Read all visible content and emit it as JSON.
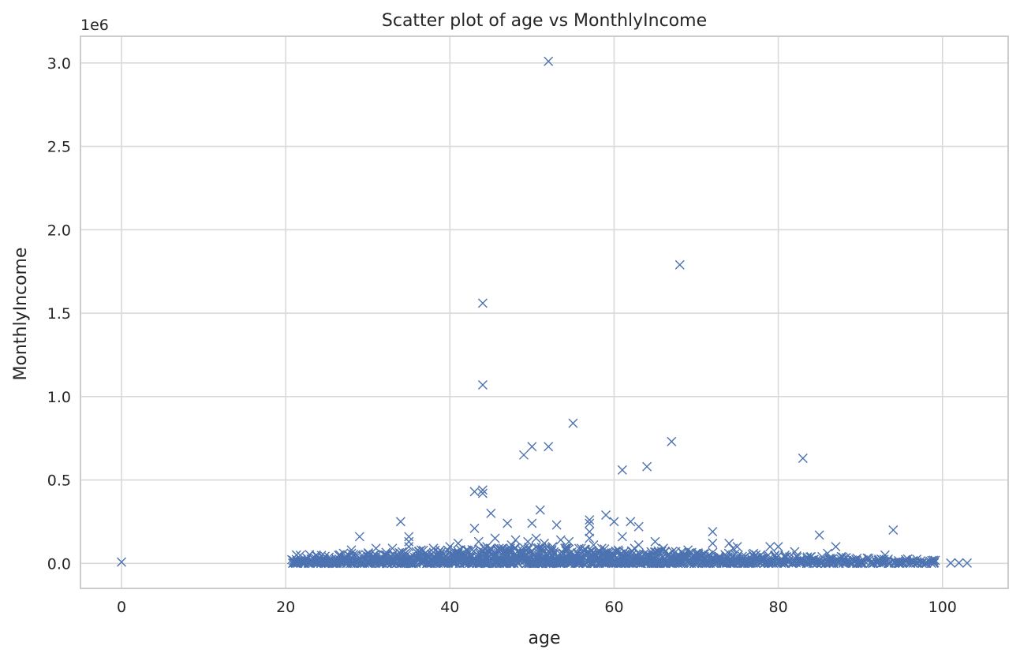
{
  "chart_data": {
    "type": "scatter",
    "title": "Scatter plot of age vs MonthlyIncome",
    "xlabel": "age",
    "ylabel": "MonthlyIncome",
    "y_offset_label": "1e6",
    "xlim": [
      -5,
      108
    ],
    "ylim": [
      -150000,
      3160000
    ],
    "x_ticks": [
      0,
      20,
      40,
      60,
      80,
      100
    ],
    "x_tick_labels": [
      "0",
      "20",
      "40",
      "60",
      "80",
      "100"
    ],
    "y_ticks": [
      0,
      500000,
      1000000,
      1500000,
      2000000,
      2500000,
      3000000
    ],
    "y_tick_labels": [
      "0.0",
      "0.5",
      "1.0",
      "1.5",
      "2.0",
      "2.5",
      "3.0"
    ],
    "grid": true,
    "marker": "x",
    "color": "#4c72b0",
    "points": [
      [
        0,
        8000
      ],
      [
        21,
        3000
      ],
      [
        21.5,
        5000
      ],
      [
        22,
        4000
      ],
      [
        23,
        6000
      ],
      [
        24,
        5000
      ],
      [
        25,
        8000
      ],
      [
        25.5,
        20000
      ],
      [
        26,
        10000
      ],
      [
        27,
        15000
      ],
      [
        28,
        30000
      ],
      [
        28,
        80000
      ],
      [
        29,
        160000
      ],
      [
        29.5,
        25000
      ],
      [
        30,
        40000
      ],
      [
        31,
        30000
      ],
      [
        31,
        90000
      ],
      [
        32,
        50000
      ],
      [
        33,
        90000
      ],
      [
        33,
        20000
      ],
      [
        34,
        250000
      ],
      [
        34,
        60000
      ],
      [
        35,
        160000
      ],
      [
        35,
        130000
      ],
      [
        35,
        100000
      ],
      [
        36,
        40000
      ],
      [
        36.5,
        80000
      ],
      [
        37,
        60000
      ],
      [
        38,
        90000
      ],
      [
        38,
        30000
      ],
      [
        39,
        70000
      ],
      [
        39.5,
        20000
      ],
      [
        40,
        100000
      ],
      [
        40.5,
        50000
      ],
      [
        41,
        120000
      ],
      [
        41.5,
        60000
      ],
      [
        42,
        80000
      ],
      [
        42.5,
        40000
      ],
      [
        43,
        430000
      ],
      [
        43,
        210000
      ],
      [
        43.5,
        130000
      ],
      [
        44,
        1560000
      ],
      [
        44,
        1070000
      ],
      [
        44,
        440000
      ],
      [
        44,
        420000
      ],
      [
        44.5,
        100000
      ],
      [
        45,
        300000
      ],
      [
        45.5,
        150000
      ],
      [
        46,
        90000
      ],
      [
        46.5,
        60000
      ],
      [
        47,
        240000
      ],
      [
        47.5,
        110000
      ],
      [
        48,
        140000
      ],
      [
        48.5,
        70000
      ],
      [
        49,
        650000
      ],
      [
        49.5,
        130000
      ],
      [
        50,
        700000
      ],
      [
        50,
        240000
      ],
      [
        50.5,
        150000
      ],
      [
        51,
        320000
      ],
      [
        51.5,
        120000
      ],
      [
        52,
        3010000
      ],
      [
        52,
        700000
      ],
      [
        52.5,
        100000
      ],
      [
        53,
        230000
      ],
      [
        53.5,
        140000
      ],
      [
        54,
        90000
      ],
      [
        54.5,
        130000
      ],
      [
        55,
        840000
      ],
      [
        55.5,
        60000
      ],
      [
        56,
        90000
      ],
      [
        56.5,
        50000
      ],
      [
        57,
        260000
      ],
      [
        57,
        240000
      ],
      [
        57,
        190000
      ],
      [
        57,
        150000
      ],
      [
        57.5,
        110000
      ],
      [
        58,
        70000
      ],
      [
        58.5,
        90000
      ],
      [
        59,
        290000
      ],
      [
        59.5,
        40000
      ],
      [
        60,
        250000
      ],
      [
        60.5,
        80000
      ],
      [
        61,
        560000
      ],
      [
        61,
        160000
      ],
      [
        61.5,
        60000
      ],
      [
        62,
        250000
      ],
      [
        62.5,
        90000
      ],
      [
        63,
        220000
      ],
      [
        63,
        110000
      ],
      [
        64,
        580000
      ],
      [
        64.5,
        70000
      ],
      [
        65,
        130000
      ],
      [
        65.5,
        60000
      ],
      [
        66,
        90000
      ],
      [
        66.5,
        50000
      ],
      [
        67,
        730000
      ],
      [
        67.5,
        70000
      ],
      [
        68,
        1790000
      ],
      [
        68.5,
        50000
      ],
      [
        69,
        80000
      ],
      [
        69.5,
        30000
      ],
      [
        70,
        60000
      ],
      [
        71,
        40000
      ],
      [
        72,
        190000
      ],
      [
        72,
        120000
      ],
      [
        73,
        30000
      ],
      [
        74,
        120000
      ],
      [
        74.5,
        90000
      ],
      [
        75,
        100000
      ],
      [
        76,
        40000
      ],
      [
        77,
        60000
      ],
      [
        78,
        30000
      ],
      [
        79,
        100000
      ],
      [
        80,
        100000
      ],
      [
        81,
        40000
      ],
      [
        82,
        70000
      ],
      [
        83,
        630000
      ],
      [
        83.5,
        30000
      ],
      [
        84,
        40000
      ],
      [
        85,
        170000
      ],
      [
        86,
        60000
      ],
      [
        87,
        100000
      ],
      [
        88,
        30000
      ],
      [
        89,
        20000
      ],
      [
        90,
        10000
      ],
      [
        91,
        30000
      ],
      [
        92,
        10000
      ],
      [
        93,
        50000
      ],
      [
        94,
        200000
      ],
      [
        95,
        5000
      ],
      [
        96,
        3000
      ],
      [
        97,
        2000
      ],
      [
        98,
        3000
      ],
      [
        99,
        5000
      ],
      [
        101,
        2000
      ],
      [
        102,
        3000
      ],
      [
        103,
        2000
      ]
    ],
    "dense_band": {
      "x_range": [
        21,
        99
      ],
      "y_range": [
        0,
        100000
      ],
      "peak_x": 50
    }
  }
}
